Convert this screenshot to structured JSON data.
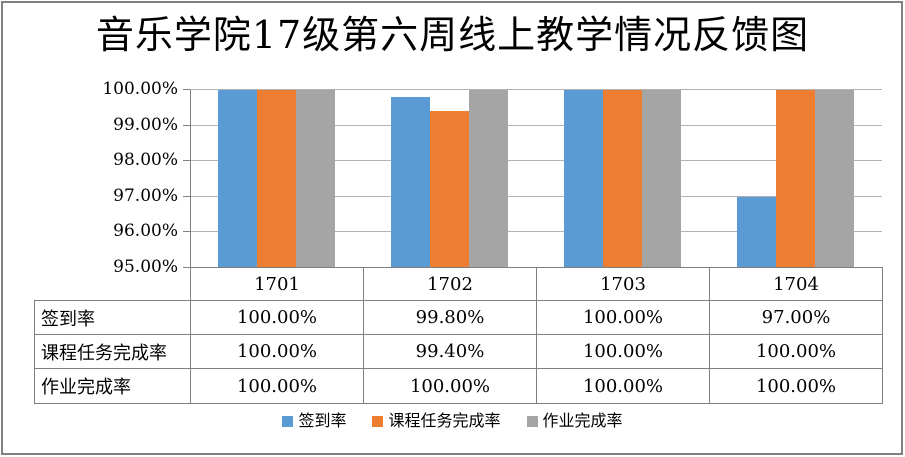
{
  "chart_data": {
    "type": "bar",
    "title": "音乐学院17级第六周线上教学情况反馈图",
    "categories": [
      "1701",
      "1702",
      "1703",
      "1704"
    ],
    "series": [
      {
        "name": "签到率",
        "color": "#5B9BD5",
        "values": [
          100.0,
          99.8,
          100.0,
          97.0
        ]
      },
      {
        "name": "课程任务完成率",
        "color": "#ED7D31",
        "values": [
          100.0,
          99.4,
          100.0,
          100.0
        ]
      },
      {
        "name": "作业完成率",
        "color": "#A5A5A5",
        "values": [
          100.0,
          100.0,
          100.0,
          100.0
        ]
      }
    ],
    "ylim": [
      95,
      100
    ],
    "ytick_step": 1,
    "ytick_labels": [
      "95.00%",
      "96.00%",
      "97.00%",
      "98.00%",
      "99.00%",
      "100.00%"
    ],
    "grid": true,
    "legend_position": "bottom",
    "data_table_rows": [
      {
        "label": "签到率",
        "values": [
          "100.00%",
          "99.80%",
          "100.00%",
          "97.00%"
        ]
      },
      {
        "label": "课程任务完成率",
        "values": [
          "100.00%",
          "99.40%",
          "100.00%",
          "100.00%"
        ]
      },
      {
        "label": "作业完成率",
        "values": [
          "100.00%",
          "100.00%",
          "100.00%",
          "100.00%"
        ]
      }
    ]
  },
  "colors": {
    "grid": "#B3B3B3",
    "axis": "#7F7F7F",
    "table_border": "#7F7F7F",
    "frame_border": "#808080",
    "text": "#000000",
    "background": "#FFFFFF"
  }
}
